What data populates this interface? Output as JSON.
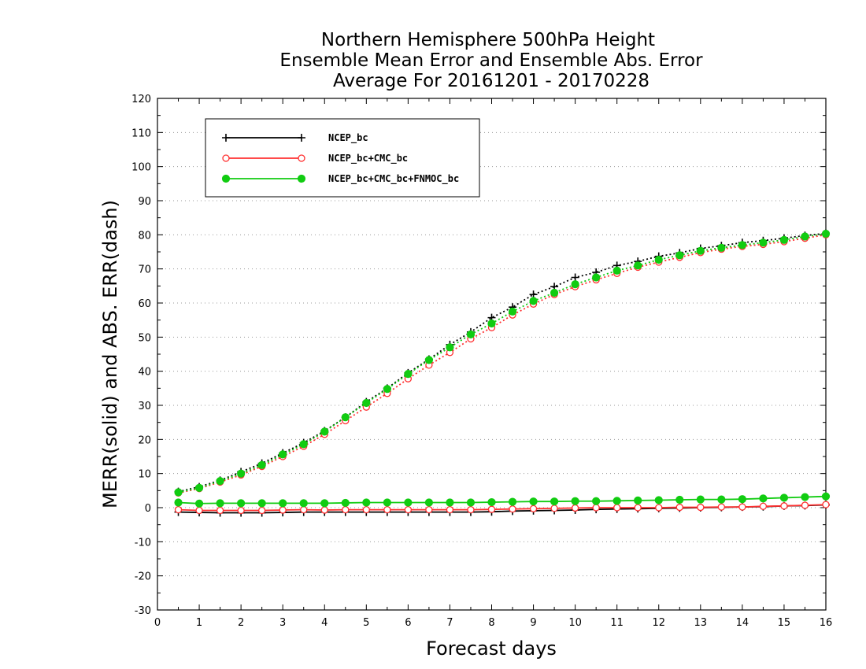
{
  "chart_data": {
    "type": "line",
    "title": [
      "Northern Hemisphere 500hPa Height",
      "Ensemble Mean Error and Ensemble Abs. Error",
      "Average For 20161201 - 20170228"
    ],
    "xlabel": "Forecast days",
    "ylabel": "MERR(solid) and ABS. ERR(dash)",
    "xlim": [
      0,
      16
    ],
    "ylim": [
      -30,
      120
    ],
    "x_ticks": [
      0,
      1,
      2,
      3,
      4,
      5,
      6,
      7,
      8,
      9,
      10,
      11,
      12,
      13,
      14,
      15,
      16
    ],
    "y_ticks": [
      -30,
      -20,
      -10,
      0,
      10,
      20,
      30,
      40,
      50,
      60,
      70,
      80,
      90,
      100,
      110,
      120
    ],
    "grid": "horizontal dotted",
    "legend_position": "top-left",
    "x": [
      0.5,
      1,
      1.5,
      2,
      2.5,
      3,
      3.5,
      4,
      4.5,
      5,
      5.5,
      6,
      6.5,
      7,
      7.5,
      8,
      8.5,
      9,
      9.5,
      10,
      10.5,
      11,
      11.5,
      12,
      12.5,
      13,
      13.5,
      14,
      14.5,
      15,
      15.5,
      16
    ],
    "series": [
      {
        "name": "NCEP_bc",
        "color": "#000000",
        "marker": "plus",
        "merr": [
          -1.3,
          -1.4,
          -1.5,
          -1.5,
          -1.5,
          -1.4,
          -1.3,
          -1.3,
          -1.3,
          -1.3,
          -1.3,
          -1.3,
          -1.3,
          -1.3,
          -1.3,
          -1.2,
          -1.0,
          -0.9,
          -0.8,
          -0.7,
          -0.5,
          -0.4,
          -0.3,
          -0.2,
          -0.1,
          0.0,
          0.1,
          0.2,
          0.3,
          0.5,
          0.6,
          0.8
        ],
        "abs_err": [
          4.7,
          6.1,
          8.0,
          10.5,
          13.0,
          16.0,
          19.0,
          22.5,
          26.5,
          31.0,
          35.0,
          39.5,
          43.5,
          47.8,
          51.5,
          55.7,
          58.8,
          62.5,
          64.8,
          67.5,
          69.0,
          71.0,
          72.2,
          73.7,
          74.7,
          76.0,
          76.8,
          77.7,
          78.3,
          79.0,
          79.8,
          80.4
        ]
      },
      {
        "name": "NCEP_bc+CMC_bc",
        "color": "#ff3030",
        "marker": "open-circle",
        "merr": [
          -0.6,
          -0.8,
          -0.8,
          -0.8,
          -0.8,
          -0.7,
          -0.6,
          -0.7,
          -0.6,
          -0.6,
          -0.6,
          -0.6,
          -0.6,
          -0.6,
          -0.6,
          -0.5,
          -0.4,
          -0.3,
          -0.2,
          -0.1,
          0.0,
          0.0,
          0.0,
          0.0,
          0.1,
          0.1,
          0.2,
          0.2,
          0.4,
          0.5,
          0.7,
          0.9
        ],
        "abs_err": [
          4.3,
          5.6,
          7.5,
          9.6,
          12.1,
          15.0,
          18.0,
          21.5,
          25.5,
          29.5,
          33.5,
          37.8,
          41.8,
          45.5,
          49.5,
          52.8,
          56.5,
          59.7,
          62.5,
          64.8,
          66.8,
          68.7,
          70.5,
          72.0,
          73.4,
          74.8,
          75.8,
          76.6,
          77.2,
          78.0,
          79.0,
          80.0
        ]
      },
      {
        "name": "NCEP_bc+CMC_bc+FNMOC_bc",
        "color": "#11cc11",
        "marker": "filled-circle",
        "merr": [
          1.5,
          1.2,
          1.3,
          1.3,
          1.3,
          1.3,
          1.3,
          1.3,
          1.4,
          1.5,
          1.5,
          1.5,
          1.5,
          1.5,
          1.5,
          1.6,
          1.7,
          1.8,
          1.8,
          1.9,
          1.9,
          2.0,
          2.1,
          2.2,
          2.3,
          2.4,
          2.4,
          2.5,
          2.7,
          2.9,
          3.1,
          3.3
        ],
        "abs_err": [
          4.5,
          5.8,
          7.8,
          10.0,
          12.5,
          15.6,
          18.6,
          22.3,
          26.5,
          30.7,
          34.8,
          39.2,
          43.3,
          47.0,
          50.8,
          54.0,
          57.5,
          60.6,
          63.0,
          65.5,
          67.5,
          69.5,
          71.0,
          72.7,
          74.0,
          75.3,
          76.2,
          77.0,
          77.7,
          78.5,
          79.5,
          80.3
        ]
      }
    ]
  }
}
